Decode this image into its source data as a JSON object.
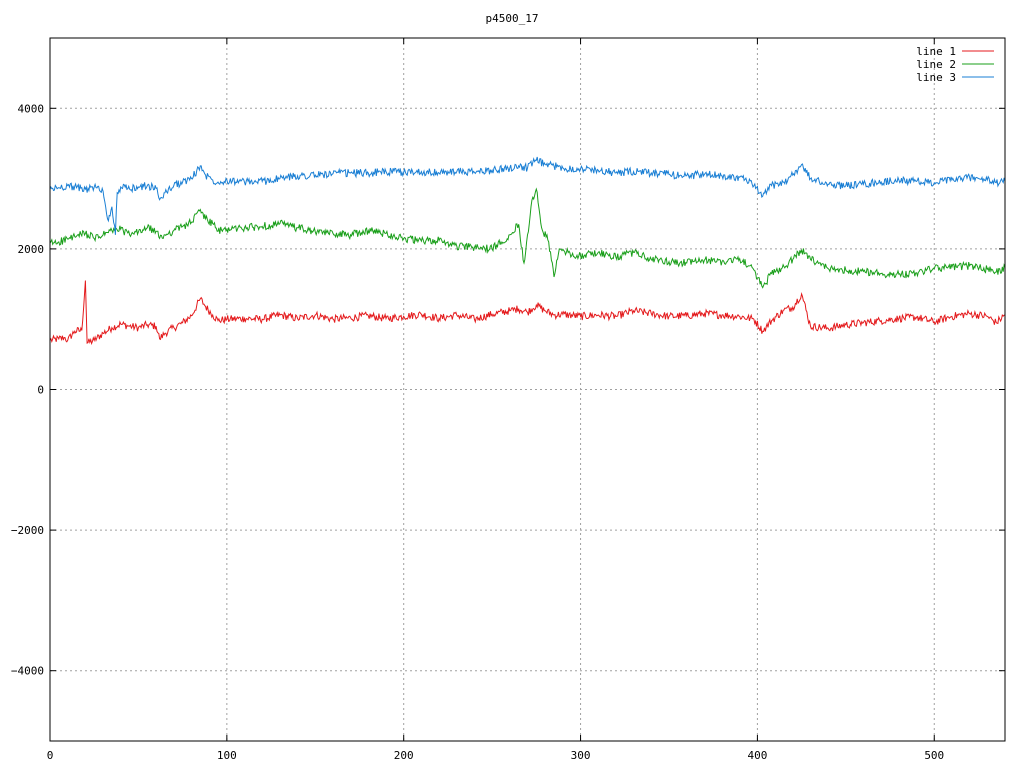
{
  "chart_data": {
    "type": "line",
    "title": "p4500_17",
    "xlabel": "",
    "ylabel": "",
    "xlim": [
      0,
      540
    ],
    "ylim": [
      -5000,
      5000
    ],
    "xticks": [
      "0",
      "100",
      "200",
      "300",
      "400",
      "500"
    ],
    "yticks": [
      "4000",
      "2000",
      "0",
      "−2000",
      "−4000"
    ],
    "grid": true,
    "legend_position": "top-right",
    "series": [
      {
        "name": "line 1",
        "color": "#e41a1c",
        "points": [
          [
            0,
            700
          ],
          [
            5,
            720
          ],
          [
            8,
            740
          ],
          [
            10,
            700
          ],
          [
            14,
            830
          ],
          [
            18,
            840
          ],
          [
            20,
            1550
          ],
          [
            21,
            660
          ],
          [
            25,
            700
          ],
          [
            30,
            800
          ],
          [
            35,
            880
          ],
          [
            40,
            930
          ],
          [
            45,
            900
          ],
          [
            50,
            880
          ],
          [
            55,
            920
          ],
          [
            60,
            900
          ],
          [
            62,
            720
          ],
          [
            65,
            800
          ],
          [
            70,
            880
          ],
          [
            75,
            950
          ],
          [
            80,
            1050
          ],
          [
            85,
            1290
          ],
          [
            88,
            1180
          ],
          [
            92,
            1060
          ],
          [
            95,
            980
          ],
          [
            100,
            1000
          ],
          [
            110,
            1010
          ],
          [
            120,
            1000
          ],
          [
            130,
            1060
          ],
          [
            140,
            1010
          ],
          [
            150,
            1060
          ],
          [
            160,
            1000
          ],
          [
            170,
            1020
          ],
          [
            180,
            1050
          ],
          [
            190,
            1010
          ],
          [
            200,
            1040
          ],
          [
            210,
            1070
          ],
          [
            220,
            1010
          ],
          [
            230,
            1060
          ],
          [
            240,
            1000
          ],
          [
            250,
            1070
          ],
          [
            260,
            1120
          ],
          [
            265,
            1150
          ],
          [
            270,
            1100
          ],
          [
            275,
            1200
          ],
          [
            280,
            1120
          ],
          [
            285,
            1060
          ],
          [
            290,
            1070
          ],
          [
            300,
            1040
          ],
          [
            310,
            1060
          ],
          [
            320,
            1040
          ],
          [
            330,
            1120
          ],
          [
            340,
            1080
          ],
          [
            350,
            1040
          ],
          [
            360,
            1050
          ],
          [
            370,
            1080
          ],
          [
            380,
            1060
          ],
          [
            390,
            1040
          ],
          [
            398,
            1000
          ],
          [
            403,
            830
          ],
          [
            408,
            980
          ],
          [
            415,
            1130
          ],
          [
            420,
            1170
          ],
          [
            425,
            1360
          ],
          [
            430,
            900
          ],
          [
            440,
            870
          ],
          [
            450,
            920
          ],
          [
            460,
            950
          ],
          [
            470,
            980
          ],
          [
            480,
            1010
          ],
          [
            490,
            1030
          ],
          [
            500,
            960
          ],
          [
            510,
            1040
          ],
          [
            520,
            1080
          ],
          [
            530,
            1040
          ],
          [
            535,
            950
          ],
          [
            540,
            1060
          ]
        ]
      },
      {
        "name": "line 2",
        "color": "#1a9f1a",
        "points": [
          [
            0,
            2080
          ],
          [
            5,
            2100
          ],
          [
            10,
            2140
          ],
          [
            15,
            2180
          ],
          [
            20,
            2220
          ],
          [
            25,
            2150
          ],
          [
            30,
            2200
          ],
          [
            35,
            2260
          ],
          [
            40,
            2280
          ],
          [
            45,
            2200
          ],
          [
            50,
            2240
          ],
          [
            55,
            2300
          ],
          [
            60,
            2250
          ],
          [
            62,
            2150
          ],
          [
            65,
            2200
          ],
          [
            70,
            2260
          ],
          [
            75,
            2320
          ],
          [
            80,
            2380
          ],
          [
            85,
            2560
          ],
          [
            88,
            2430
          ],
          [
            92,
            2360
          ],
          [
            95,
            2250
          ],
          [
            100,
            2280
          ],
          [
            110,
            2300
          ],
          [
            120,
            2320
          ],
          [
            130,
            2360
          ],
          [
            140,
            2300
          ],
          [
            150,
            2240
          ],
          [
            160,
            2220
          ],
          [
            170,
            2200
          ],
          [
            180,
            2260
          ],
          [
            190,
            2220
          ],
          [
            200,
            2150
          ],
          [
            210,
            2110
          ],
          [
            220,
            2120
          ],
          [
            230,
            2040
          ],
          [
            240,
            2020
          ],
          [
            250,
            2000
          ],
          [
            255,
            2100
          ],
          [
            260,
            2200
          ],
          [
            265,
            2350
          ],
          [
            268,
            1800
          ],
          [
            272,
            2600
          ],
          [
            275,
            2850
          ],
          [
            278,
            2300
          ],
          [
            282,
            2100
          ],
          [
            285,
            1600
          ],
          [
            288,
            2000
          ],
          [
            292,
            1950
          ],
          [
            300,
            1900
          ],
          [
            310,
            1950
          ],
          [
            320,
            1880
          ],
          [
            330,
            1950
          ],
          [
            340,
            1850
          ],
          [
            350,
            1820
          ],
          [
            360,
            1800
          ],
          [
            370,
            1840
          ],
          [
            380,
            1820
          ],
          [
            390,
            1860
          ],
          [
            398,
            1700
          ],
          [
            403,
            1450
          ],
          [
            408,
            1650
          ],
          [
            415,
            1750
          ],
          [
            420,
            1850
          ],
          [
            425,
            1980
          ],
          [
            430,
            1850
          ],
          [
            440,
            1720
          ],
          [
            450,
            1700
          ],
          [
            460,
            1680
          ],
          [
            470,
            1650
          ],
          [
            480,
            1640
          ],
          [
            490,
            1660
          ],
          [
            500,
            1720
          ],
          [
            510,
            1740
          ],
          [
            520,
            1760
          ],
          [
            530,
            1710
          ],
          [
            535,
            1670
          ],
          [
            540,
            1740
          ]
        ]
      },
      {
        "name": "line 3",
        "color": "#1a7fd4",
        "points": [
          [
            0,
            2850
          ],
          [
            5,
            2870
          ],
          [
            10,
            2900
          ],
          [
            15,
            2870
          ],
          [
            20,
            2850
          ],
          [
            25,
            2880
          ],
          [
            30,
            2820
          ],
          [
            33,
            2400
          ],
          [
            35,
            2600
          ],
          [
            37,
            2200
          ],
          [
            38,
            2800
          ],
          [
            40,
            2880
          ],
          [
            45,
            2850
          ],
          [
            50,
            2880
          ],
          [
            55,
            2900
          ],
          [
            60,
            2860
          ],
          [
            62,
            2700
          ],
          [
            65,
            2800
          ],
          [
            70,
            2900
          ],
          [
            75,
            2950
          ],
          [
            80,
            3000
          ],
          [
            85,
            3180
          ],
          [
            88,
            3050
          ],
          [
            92,
            2980
          ],
          [
            95,
            2950
          ],
          [
            100,
            2980
          ],
          [
            110,
            2950
          ],
          [
            120,
            2960
          ],
          [
            130,
            3000
          ],
          [
            140,
            3040
          ],
          [
            150,
            3050
          ],
          [
            160,
            3070
          ],
          [
            170,
            3080
          ],
          [
            180,
            3080
          ],
          [
            190,
            3100
          ],
          [
            200,
            3090
          ],
          [
            210,
            3100
          ],
          [
            220,
            3080
          ],
          [
            230,
            3100
          ],
          [
            240,
            3090
          ],
          [
            250,
            3120
          ],
          [
            260,
            3150
          ],
          [
            265,
            3180
          ],
          [
            270,
            3150
          ],
          [
            275,
            3260
          ],
          [
            280,
            3200
          ],
          [
            285,
            3180
          ],
          [
            290,
            3150
          ],
          [
            300,
            3140
          ],
          [
            310,
            3120
          ],
          [
            320,
            3080
          ],
          [
            330,
            3100
          ],
          [
            340,
            3080
          ],
          [
            350,
            3060
          ],
          [
            360,
            3040
          ],
          [
            370,
            3060
          ],
          [
            380,
            3040
          ],
          [
            390,
            3020
          ],
          [
            398,
            2900
          ],
          [
            403,
            2750
          ],
          [
            408,
            2900
          ],
          [
            415,
            2950
          ],
          [
            420,
            3050
          ],
          [
            425,
            3200
          ],
          [
            430,
            3000
          ],
          [
            440,
            2920
          ],
          [
            450,
            2900
          ],
          [
            460,
            2920
          ],
          [
            470,
            2950
          ],
          [
            480,
            2980
          ],
          [
            490,
            2960
          ],
          [
            500,
            2940
          ],
          [
            510,
            2980
          ],
          [
            520,
            3020
          ],
          [
            530,
            2980
          ],
          [
            535,
            2940
          ],
          [
            540,
            2960
          ]
        ]
      }
    ]
  }
}
